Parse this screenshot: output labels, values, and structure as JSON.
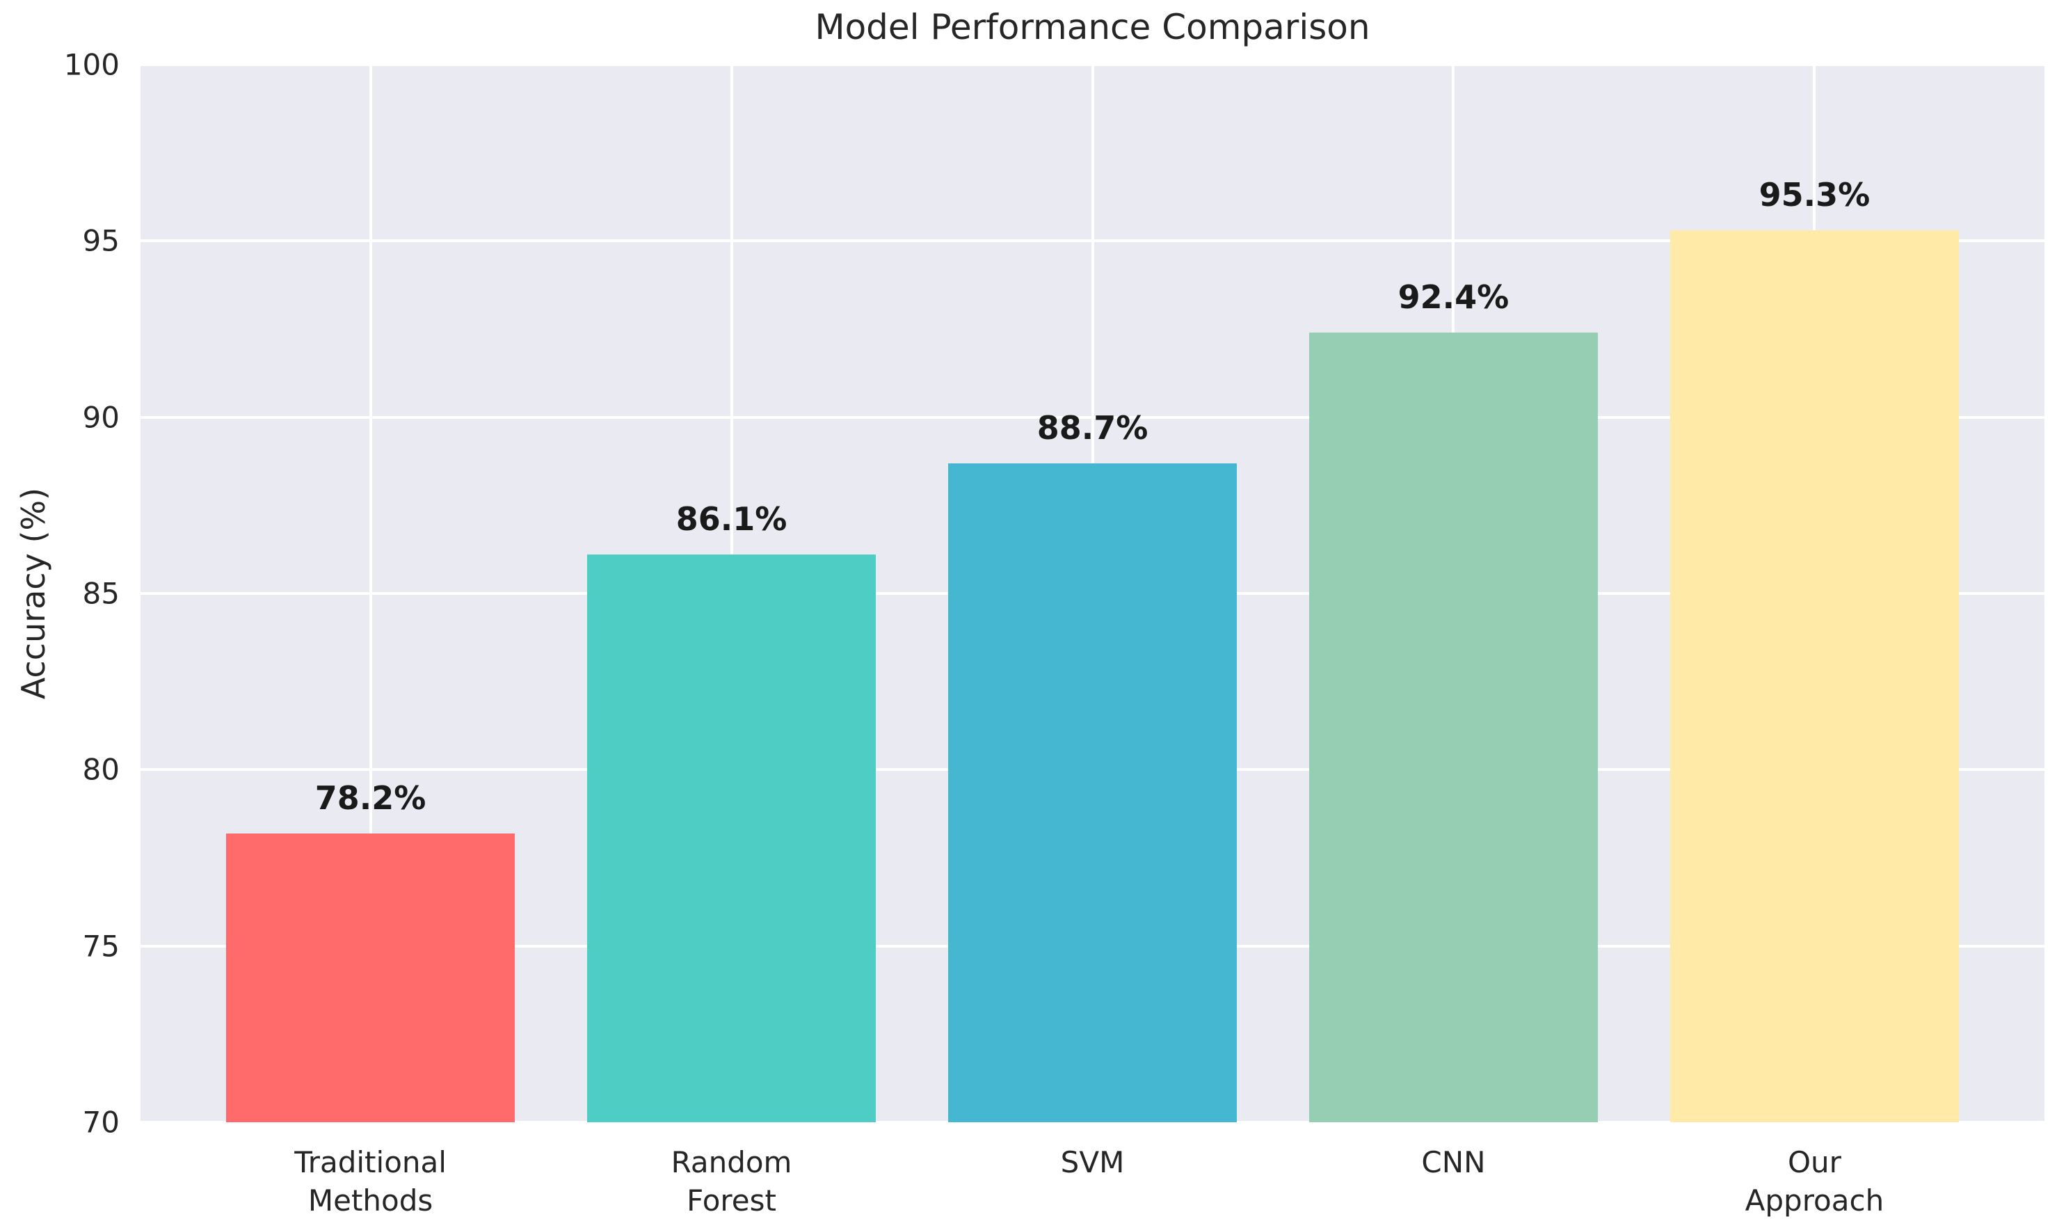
{
  "chart_data": {
    "type": "bar",
    "title": "Model Performance Comparison",
    "ylabel": "Accuracy (%)",
    "xlabel": "",
    "categories": [
      "Traditional\nMethods",
      "Random\nForest",
      "SVM",
      "CNN",
      "Our\nApproach"
    ],
    "values": [
      78.2,
      86.1,
      88.7,
      92.4,
      95.3
    ],
    "bar_value_labels": [
      "78.2%",
      "86.1%",
      "88.7%",
      "92.4%",
      "95.3%"
    ],
    "bar_colors": [
      "#FF6B6B",
      "#4ECDC4",
      "#45B7D1",
      "#96CEB4",
      "#FFEAA7"
    ],
    "ylim": [
      70,
      100
    ],
    "yticks": [
      70,
      75,
      80,
      85,
      90,
      95,
      100
    ],
    "grid": "on",
    "legend_position": "none",
    "plot_background_color": "#EAEAF2",
    "grid_color": "#FFFFFF",
    "tick_text_color": "#262626",
    "bar_label_color": "#1A1A1A",
    "figure_background_color": "#FFFFFF"
  }
}
